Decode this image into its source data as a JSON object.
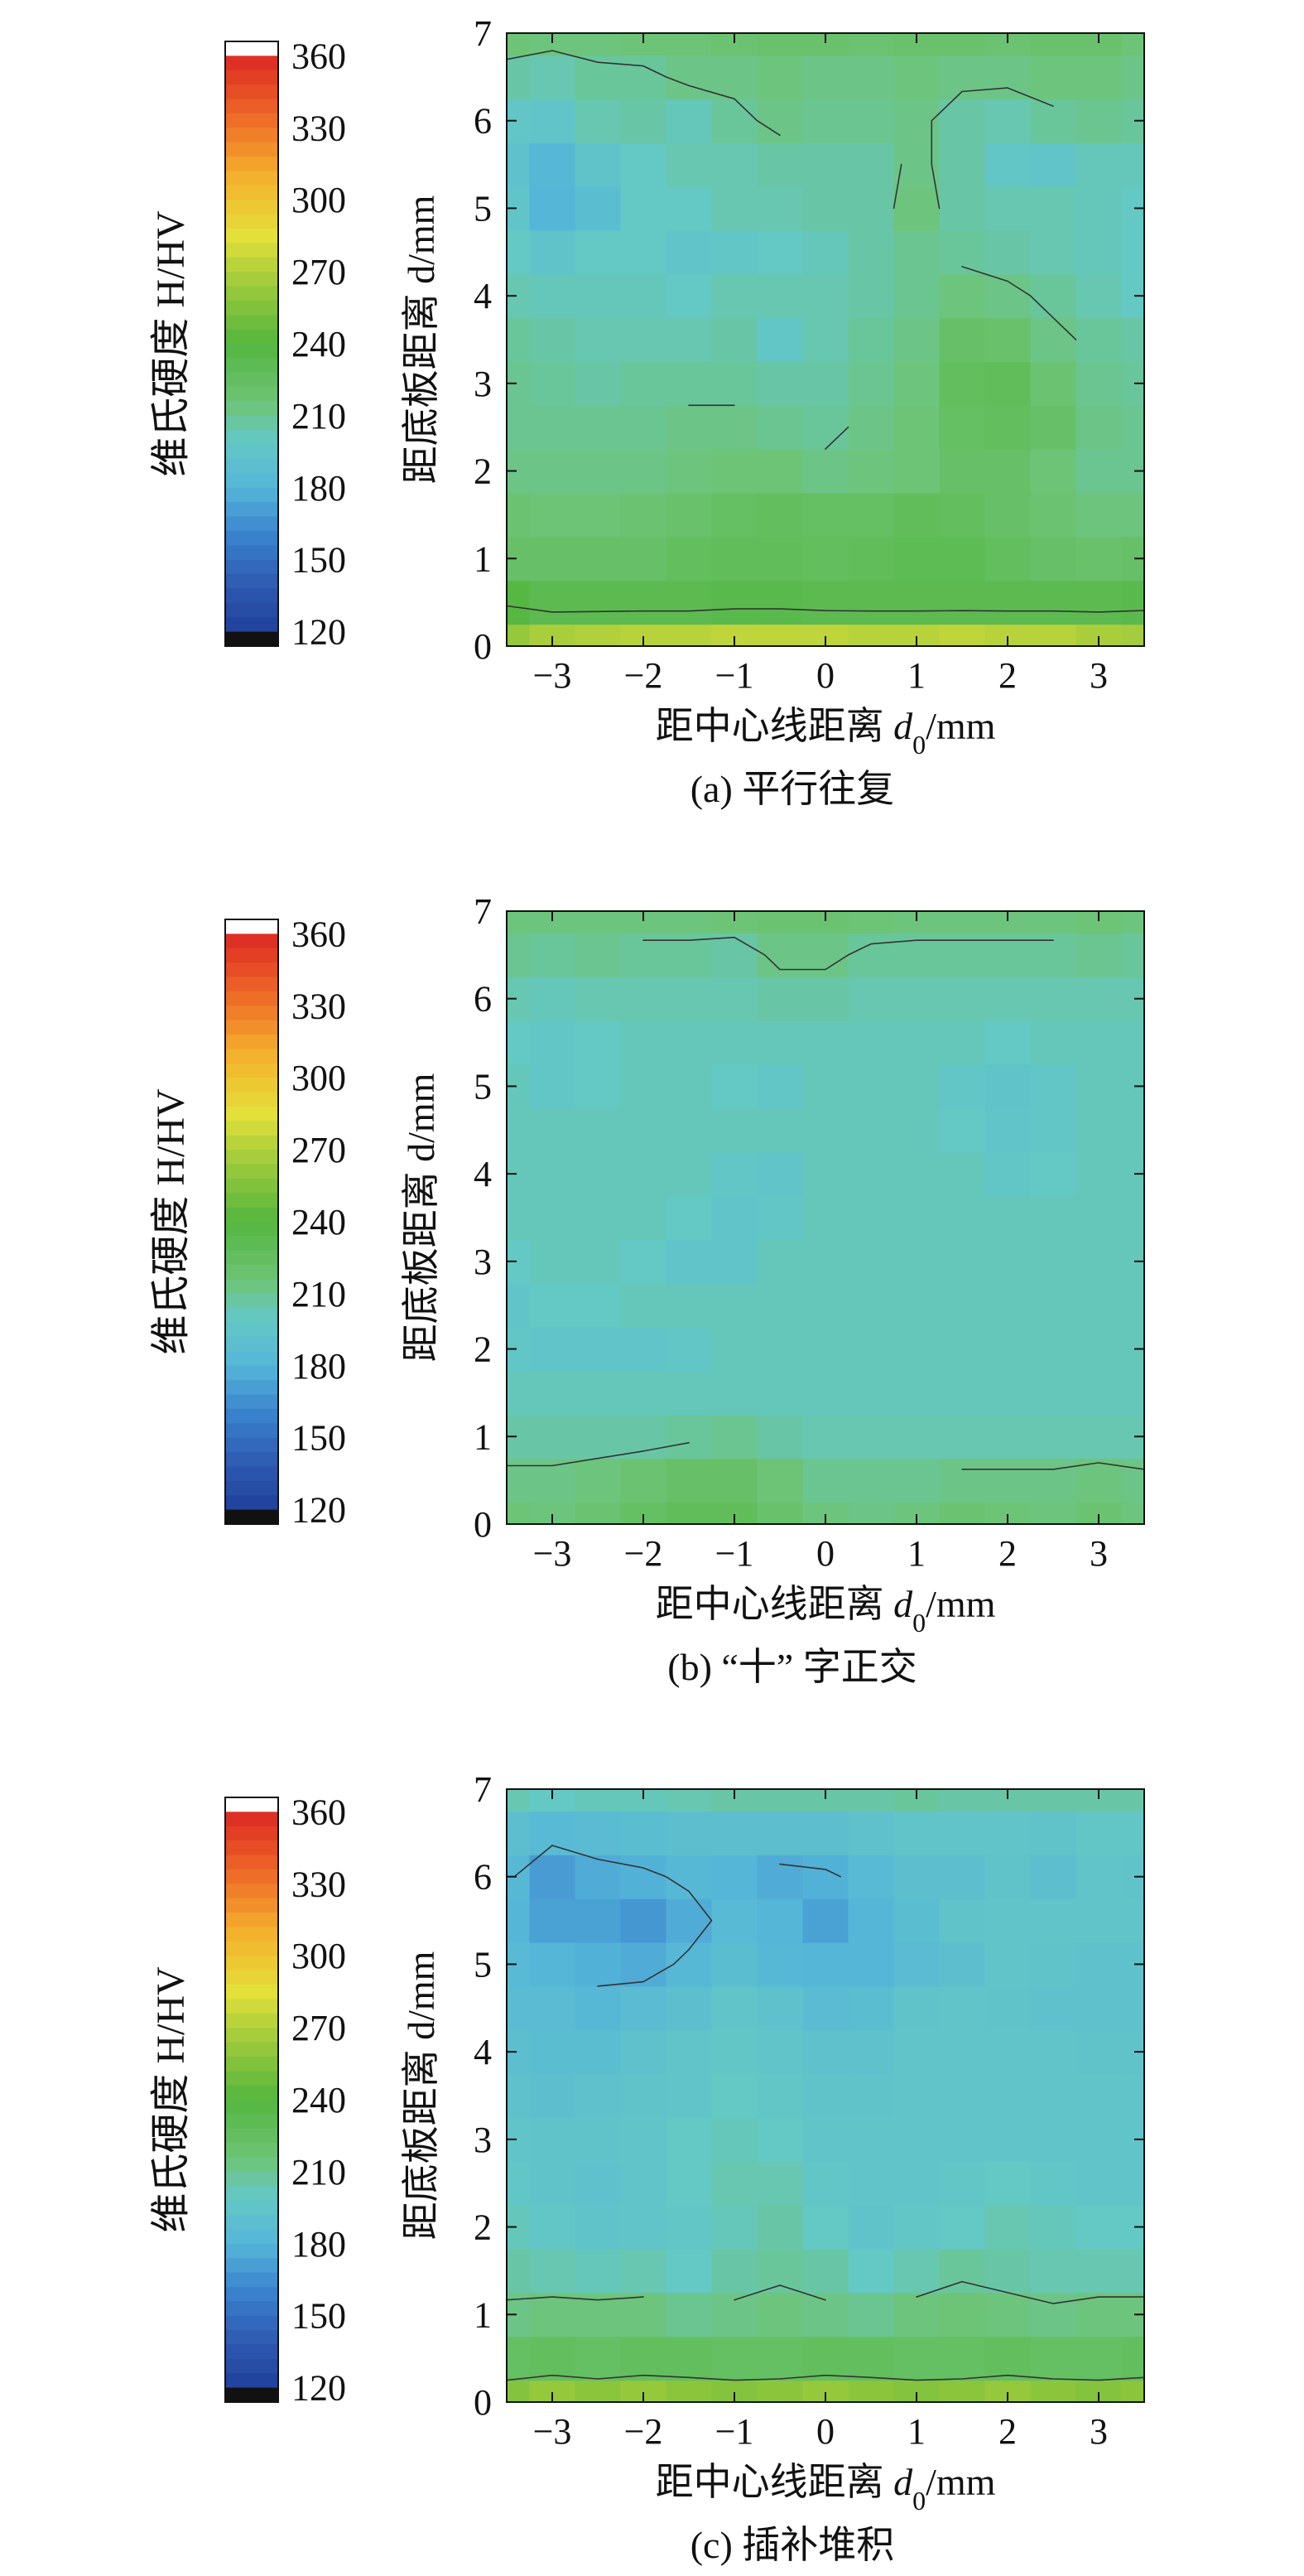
{
  "colorbar": {
    "title": "维氏硬度 H/HV",
    "min": 120,
    "max": 360,
    "step": 6,
    "ticks": [
      360,
      330,
      300,
      270,
      240,
      210,
      180,
      150,
      120
    ]
  },
  "chart_data": [
    {
      "type": "heatmap",
      "caption": "(a) 平行往复",
      "xlabel": "距中心线距离 d0/mm",
      "ylabel": "距底板距离 d/mm",
      "xlim": [
        -3.5,
        3.5
      ],
      "ylim": [
        0,
        7
      ],
      "xticks": [
        -3,
        -2,
        -1,
        0,
        1,
        2,
        3
      ],
      "yticks": [
        0,
        1,
        2,
        3,
        4,
        5,
        6,
        7
      ],
      "x": [
        -3.5,
        -3,
        -2.5,
        -2,
        -1.5,
        -1,
        -0.5,
        0,
        0.5,
        1,
        1.5,
        2,
        2.5,
        3,
        3.5
      ],
      "y": [
        0,
        0.5,
        1,
        1.5,
        2,
        2.5,
        3,
        3.5,
        4,
        4.5,
        5,
        5.5,
        6,
        6.5,
        7
      ],
      "z": [
        [
          262,
          268,
          270,
          272,
          272,
          274,
          274,
          274,
          272,
          272,
          274,
          272,
          272,
          268,
          266
        ],
        [
          238,
          232,
          232,
          232,
          232,
          234,
          234,
          232,
          232,
          232,
          232,
          232,
          232,
          232,
          234
        ],
        [
          222,
          222,
          222,
          222,
          226,
          228,
          228,
          226,
          228,
          230,
          230,
          226,
          222,
          220,
          222
        ],
        [
          218,
          216,
          216,
          218,
          220,
          224,
          226,
          224,
          224,
          228,
          226,
          222,
          218,
          214,
          214
        ],
        [
          212,
          212,
          212,
          212,
          214,
          216,
          216,
          212,
          214,
          216,
          222,
          222,
          216,
          210,
          210
        ],
        [
          210,
          210,
          210,
          210,
          212,
          212,
          210,
          208,
          212,
          216,
          224,
          226,
          222,
          212,
          210
        ],
        [
          210,
          208,
          206,
          208,
          208,
          208,
          206,
          206,
          210,
          214,
          226,
          228,
          218,
          210,
          208
        ],
        [
          208,
          206,
          204,
          204,
          204,
          206,
          198,
          204,
          208,
          212,
          222,
          220,
          212,
          208,
          206
        ],
        [
          204,
          202,
          202,
          202,
          200,
          204,
          204,
          204,
          206,
          210,
          214,
          212,
          208,
          204,
          200
        ],
        [
          200,
          194,
          200,
          200,
          196,
          198,
          200,
          202,
          206,
          210,
          208,
          206,
          204,
          202,
          200
        ],
        [
          196,
          180,
          188,
          200,
          200,
          204,
          204,
          206,
          206,
          214,
          206,
          204,
          204,
          202,
          200
        ],
        [
          192,
          182,
          194,
          200,
          204,
          204,
          206,
          206,
          206,
          212,
          206,
          198,
          196,
          202,
          202
        ],
        [
          198,
          196,
          204,
          206,
          202,
          208,
          212,
          210,
          210,
          212,
          206,
          204,
          208,
          210,
          208
        ],
        [
          206,
          204,
          208,
          208,
          212,
          212,
          214,
          212,
          212,
          214,
          212,
          212,
          214,
          214,
          212
        ],
        [
          216,
          214,
          214,
          216,
          216,
          218,
          220,
          220,
          218,
          220,
          220,
          218,
          220,
          220,
          216
        ]
      ]
    },
    {
      "type": "heatmap",
      "caption": "(b) “十” 字正交",
      "xlabel": "距中心线距离 d0/mm",
      "ylabel": "距底板距离 d/mm",
      "xlim": [
        -3.5,
        3.5
      ],
      "ylim": [
        0,
        7
      ],
      "xticks": [
        -3,
        -2,
        -1,
        0,
        1,
        2,
        3
      ],
      "yticks": [
        0,
        1,
        2,
        3,
        4,
        5,
        6,
        7
      ],
      "x": [
        -3.5,
        -3,
        -2.5,
        -2,
        -1.5,
        -1,
        -0.5,
        0,
        0.5,
        1,
        1.5,
        2,
        2.5,
        3,
        3.5
      ],
      "y": [
        0,
        0.5,
        1,
        1.5,
        2,
        2.5,
        3,
        3.5,
        4,
        4.5,
        5,
        5.5,
        6,
        6.5,
        7
      ],
      "z": [
        [
          216,
          214,
          218,
          224,
          228,
          228,
          220,
          214,
          212,
          214,
          218,
          216,
          214,
          218,
          214
        ],
        [
          212,
          212,
          214,
          218,
          222,
          222,
          216,
          210,
          210,
          210,
          212,
          212,
          212,
          214,
          212
        ],
        [
          206,
          206,
          206,
          206,
          208,
          210,
          206,
          204,
          204,
          204,
          204,
          204,
          204,
          204,
          204
        ],
        [
          202,
          202,
          202,
          202,
          202,
          202,
          202,
          202,
          202,
          202,
          202,
          202,
          202,
          202,
          202
        ],
        [
          198,
          196,
          196,
          196,
          198,
          202,
          202,
          202,
          202,
          202,
          202,
          202,
          202,
          202,
          202
        ],
        [
          196,
          200,
          200,
          202,
          202,
          202,
          202,
          202,
          202,
          202,
          202,
          202,
          202,
          202,
          202
        ],
        [
          200,
          202,
          202,
          200,
          196,
          196,
          202,
          202,
          202,
          202,
          202,
          202,
          202,
          202,
          202
        ],
        [
          202,
          202,
          202,
          202,
          200,
          196,
          198,
          202,
          202,
          202,
          202,
          202,
          202,
          202,
          202
        ],
        [
          202,
          202,
          202,
          202,
          202,
          198,
          196,
          202,
          202,
          202,
          202,
          198,
          200,
          202,
          202
        ],
        [
          202,
          202,
          202,
          202,
          202,
          202,
          202,
          202,
          202,
          202,
          200,
          196,
          198,
          202,
          202
        ],
        [
          202,
          198,
          200,
          202,
          202,
          200,
          198,
          202,
          202,
          202,
          198,
          194,
          198,
          202,
          202
        ],
        [
          200,
          198,
          200,
          202,
          202,
          202,
          202,
          202,
          202,
          202,
          202,
          200,
          202,
          202,
          202
        ],
        [
          204,
          202,
          204,
          204,
          204,
          204,
          206,
          206,
          204,
          204,
          204,
          204,
          204,
          204,
          204
        ],
        [
          210,
          208,
          210,
          208,
          208,
          206,
          212,
          212,
          208,
          208,
          208,
          208,
          208,
          210,
          208
        ],
        [
          214,
          214,
          214,
          214,
          214,
          216,
          218,
          218,
          216,
          214,
          214,
          214,
          214,
          216,
          214
        ]
      ]
    },
    {
      "type": "heatmap",
      "caption": "(c) 插补堆积",
      "xlabel": "距中心线距离 d0/mm",
      "ylabel": "距底板距离 d/mm",
      "xlim": [
        -3.5,
        3.5
      ],
      "ylim": [
        0,
        7
      ],
      "xticks": [
        -3,
        -2,
        -1,
        0,
        1,
        2,
        3
      ],
      "yticks": [
        0,
        1,
        2,
        3,
        4,
        5,
        6,
        7
      ],
      "x": [
        -3.5,
        -3,
        -2.5,
        -2,
        -1.5,
        -1,
        -0.5,
        0,
        0.5,
        1,
        1.5,
        2,
        2.5,
        3,
        3.5
      ],
      "y": [
        0,
        0.5,
        1,
        1.5,
        2,
        2.5,
        3,
        3.5,
        4,
        4.5,
        5,
        5.5,
        6,
        6.5,
        7
      ],
      "z": [
        [
          256,
          262,
          258,
          262,
          258,
          256,
          258,
          262,
          258,
          256,
          258,
          262,
          258,
          256,
          258
        ],
        [
          224,
          226,
          224,
          226,
          226,
          224,
          224,
          226,
          226,
          224,
          224,
          226,
          224,
          224,
          226
        ],
        [
          212,
          214,
          214,
          214,
          210,
          212,
          214,
          212,
          210,
          214,
          216,
          214,
          212,
          214,
          214
        ],
        [
          206,
          204,
          202,
          204,
          200,
          206,
          208,
          206,
          200,
          204,
          208,
          206,
          204,
          204,
          204
        ],
        [
          202,
          198,
          194,
          196,
          198,
          202,
          206,
          200,
          194,
          198,
          200,
          204,
          202,
          200,
          200
        ],
        [
          198,
          194,
          192,
          196,
          200,
          204,
          204,
          198,
          196,
          196,
          198,
          200,
          198,
          196,
          196
        ],
        [
          196,
          194,
          194,
          196,
          200,
          202,
          200,
          196,
          196,
          196,
          196,
          196,
          196,
          196,
          196
        ],
        [
          192,
          190,
          192,
          194,
          196,
          200,
          198,
          194,
          194,
          196,
          196,
          196,
          196,
          196,
          196
        ],
        [
          190,
          188,
          188,
          192,
          196,
          198,
          196,
          192,
          192,
          196,
          196,
          196,
          196,
          194,
          194
        ],
        [
          186,
          186,
          182,
          186,
          190,
          196,
          192,
          186,
          188,
          194,
          196,
          194,
          192,
          192,
          192
        ],
        [
          184,
          180,
          178,
          176,
          182,
          188,
          182,
          180,
          180,
          186,
          190,
          196,
          194,
          192,
          192
        ],
        [
          180,
          172,
          172,
          168,
          176,
          184,
          180,
          172,
          180,
          188,
          194,
          196,
          196,
          196,
          196
        ],
        [
          182,
          170,
          176,
          178,
          182,
          180,
          176,
          178,
          184,
          190,
          190,
          194,
          190,
          196,
          194
        ],
        [
          190,
          184,
          186,
          188,
          190,
          190,
          190,
          190,
          192,
          196,
          196,
          196,
          194,
          198,
          198
        ],
        [
          204,
          200,
          202,
          202,
          204,
          206,
          206,
          206,
          206,
          208,
          206,
          206,
          206,
          206,
          206
        ]
      ]
    }
  ]
}
